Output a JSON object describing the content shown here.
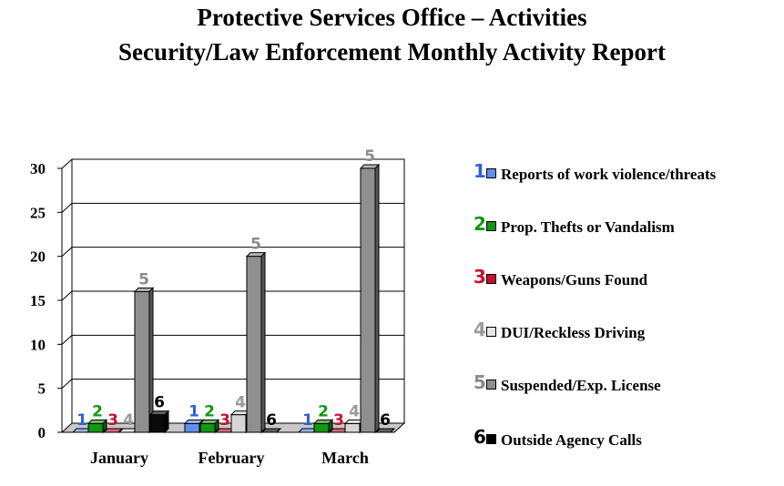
{
  "title": "Protective Services Office – Activities",
  "subtitle": "Security/Law Enforcement Monthly Activity Report",
  "chart_data": {
    "type": "bar",
    "title": "Protective Services Office – Activities",
    "subtitle": "Security/Law Enforcement Monthly Activity Report",
    "categories": [
      "January",
      "February",
      "March"
    ],
    "ylim": [
      0,
      30
    ],
    "yticks": [
      "0",
      "5",
      "10",
      "15",
      "20",
      "25",
      "30"
    ],
    "grid": true,
    "legend_position": "right",
    "series": [
      {
        "id": "1",
        "name": "Reports of work violence/threats",
        "color": "#5f8ff0",
        "values": [
          0,
          1,
          0
        ]
      },
      {
        "id": "2",
        "name": "Prop. Thefts or Vandalism",
        "color": "#129812",
        "values": [
          1,
          1,
          1
        ]
      },
      {
        "id": "3",
        "name": "Weapons/Guns Found",
        "color": "#c8102e",
        "values": [
          0,
          0,
          0
        ]
      },
      {
        "id": "4",
        "name": "DUI/Reckless Driving",
        "color": "#d6d6d6",
        "values": [
          0,
          2,
          1
        ]
      },
      {
        "id": "5",
        "name": "Suspended/Exp. License",
        "color": "#8f8f8f",
        "values": [
          16,
          20,
          30
        ]
      },
      {
        "id": "6",
        "name": "Outside Agency Calls",
        "color": "#0a0a0a",
        "values": [
          2,
          0,
          0
        ]
      }
    ]
  },
  "legend": {
    "items": [
      {
        "num": "1",
        "label": "Reports of work violence/threats",
        "num_color": "#3060d8",
        "swatch_color": "#5f8ff0"
      },
      {
        "num": "2",
        "label": "Prop. Thefts or Vandalism",
        "num_color": "#129812",
        "swatch_color": "#129812"
      },
      {
        "num": "3",
        "label": "Weapons/Guns Found",
        "num_color": "#c8102e",
        "swatch_color": "#c8102e"
      },
      {
        "num": "4",
        "label": "DUI/Reckless Driving",
        "num_color": "#9a9a9a",
        "swatch_color": "#e6e6e6"
      },
      {
        "num": "5",
        "label": "Suspended/Exp. License",
        "num_color": "#8a8a8a",
        "swatch_color": "#8f8f8f"
      },
      {
        "num": "6",
        "label": "Outside Agency Calls",
        "num_color": "#000000",
        "swatch_color": "#000000"
      }
    ]
  }
}
